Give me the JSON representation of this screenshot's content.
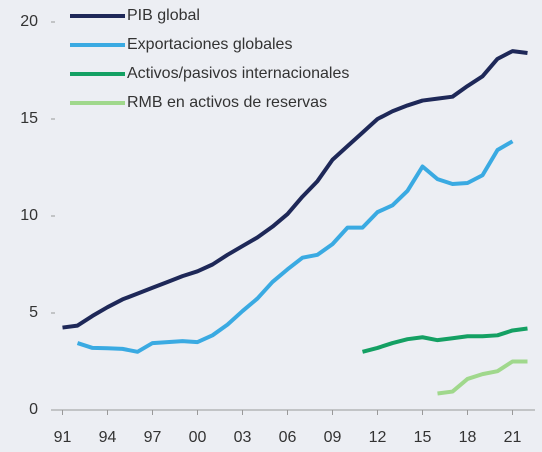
{
  "chart_data": {
    "type": "line",
    "x": [
      1991,
      1992,
      1993,
      1994,
      1995,
      1996,
      1997,
      1998,
      1999,
      2000,
      2001,
      2002,
      2003,
      2004,
      2005,
      2006,
      2007,
      2008,
      2009,
      2010,
      2011,
      2012,
      2013,
      2014,
      2015,
      2016,
      2017,
      2018,
      2019,
      2020,
      2021,
      2022
    ],
    "series": [
      {
        "name": "PIB global",
        "color": "#1e2858",
        "values": [
          4.25,
          4.35,
          4.85,
          5.3,
          5.7,
          6.0,
          6.3,
          6.6,
          6.9,
          7.15,
          7.5,
          8.0,
          8.45,
          8.9,
          9.45,
          10.1,
          11.0,
          11.8,
          12.9,
          13.6,
          14.3,
          15.0,
          15.4,
          15.7,
          15.95,
          16.05,
          16.15,
          16.7,
          17.2,
          18.1,
          18.5,
          18.4
        ]
      },
      {
        "name": "Exportaciones globales",
        "color": "#3aaae2",
        "values": [
          null,
          3.45,
          3.2,
          3.18,
          3.15,
          3.0,
          3.45,
          3.5,
          3.55,
          3.5,
          3.85,
          4.4,
          5.1,
          5.75,
          6.6,
          7.25,
          7.85,
          8.0,
          8.55,
          9.4,
          9.4,
          10.2,
          10.55,
          11.3,
          12.55,
          11.9,
          11.65,
          11.7,
          12.1,
          13.4,
          13.85,
          null
        ]
      },
      {
        "name": "Activos/pasivos internacionales",
        "color": "#14a063",
        "values": [
          null,
          null,
          null,
          null,
          null,
          null,
          null,
          null,
          null,
          null,
          null,
          null,
          null,
          null,
          null,
          null,
          null,
          null,
          null,
          null,
          3.0,
          3.2,
          3.45,
          3.65,
          3.75,
          3.6,
          3.7,
          3.8,
          3.8,
          3.85,
          4.1,
          4.2
        ]
      },
      {
        "name": "RMB en activos de reservas",
        "color": "#a0d88c",
        "values": [
          null,
          null,
          null,
          null,
          null,
          null,
          null,
          null,
          null,
          null,
          null,
          null,
          null,
          null,
          null,
          null,
          null,
          null,
          null,
          null,
          null,
          null,
          null,
          null,
          null,
          0.85,
          0.95,
          1.6,
          1.85,
          2.0,
          2.5,
          2.5
        ]
      }
    ],
    "xlim": [
      1990.5,
      2022.5
    ],
    "xticks": [
      {
        "value": 1991,
        "label": "91"
      },
      {
        "value": 1994,
        "label": "94"
      },
      {
        "value": 1997,
        "label": "97"
      },
      {
        "value": 2000,
        "label": "00"
      },
      {
        "value": 2003,
        "label": "03"
      },
      {
        "value": 2006,
        "label": "06"
      },
      {
        "value": 2009,
        "label": "09"
      },
      {
        "value": 2012,
        "label": "12"
      },
      {
        "value": 2015,
        "label": "15"
      },
      {
        "value": 2018,
        "label": "18"
      },
      {
        "value": 2021,
        "label": "21"
      }
    ],
    "ylim": [
      0,
      20
    ],
    "yticks": [
      0,
      5,
      10,
      15,
      20
    ],
    "legend": "upper left"
  }
}
